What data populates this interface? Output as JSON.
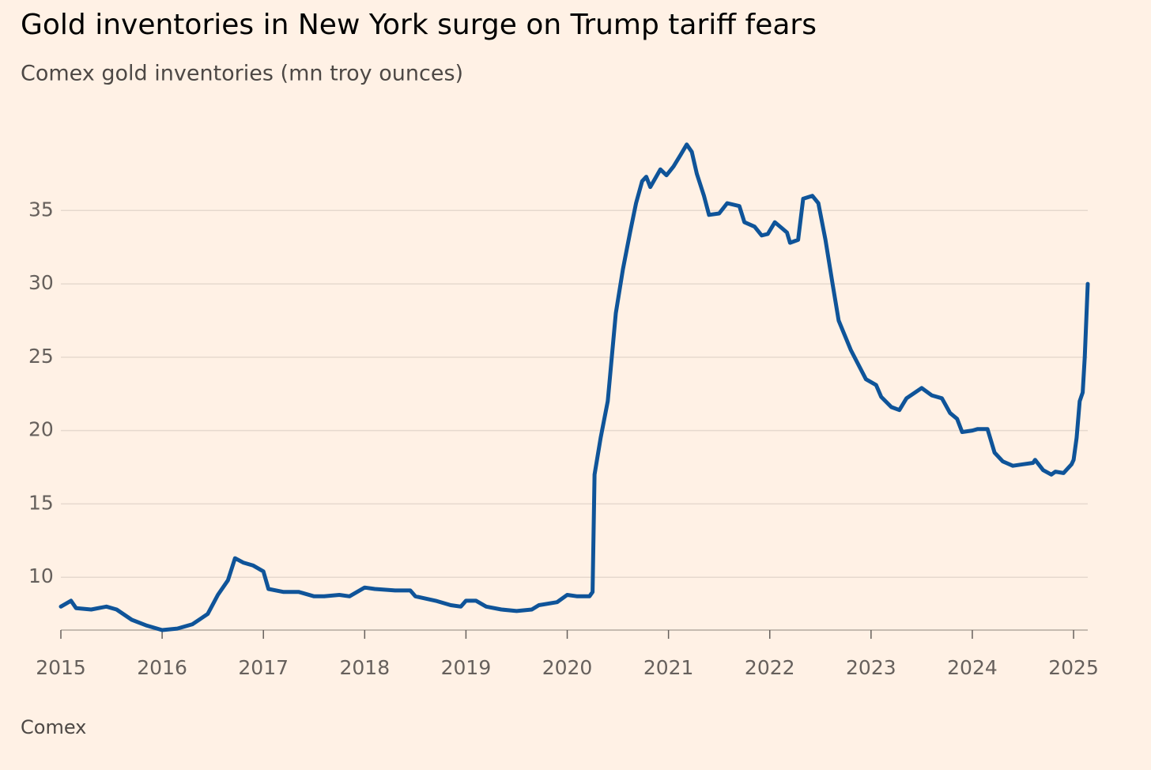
{
  "chart_data": {
    "type": "line",
    "title": "Gold inventories in New York surge on Trump tariff fears",
    "subtitle": "Comex gold inventories (mn troy ounces)",
    "source": "Comex",
    "x": [
      2015.0,
      2015.1,
      2015.15,
      2015.3,
      2015.45,
      2015.55,
      2015.7,
      2015.85,
      2016.0,
      2016.15,
      2016.3,
      2016.45,
      2016.55,
      2016.65,
      2016.72,
      2016.8,
      2016.9,
      2017.0,
      2017.05,
      2017.2,
      2017.35,
      2017.5,
      2017.6,
      2017.75,
      2017.85,
      2018.0,
      2018.1,
      2018.3,
      2018.45,
      2018.5,
      2018.7,
      2018.85,
      2018.95,
      2019.0,
      2019.1,
      2019.2,
      2019.35,
      2019.5,
      2019.65,
      2019.72,
      2019.9,
      2020.0,
      2020.1,
      2020.22,
      2020.25,
      2020.27,
      2020.33,
      2020.4,
      2020.44,
      2020.48,
      2020.55,
      2020.62,
      2020.68,
      2020.74,
      2020.78,
      2020.82,
      2020.92,
      2020.98,
      2021.05,
      2021.12,
      2021.18,
      2021.23,
      2021.28,
      2021.35,
      2021.4,
      2021.5,
      2021.58,
      2021.7,
      2021.75,
      2021.85,
      2021.92,
      2021.98,
      2022.05,
      2022.12,
      2022.17,
      2022.2,
      2022.28,
      2022.33,
      2022.42,
      2022.48,
      2022.55,
      2022.62,
      2022.68,
      2022.8,
      2022.95,
      2023.05,
      2023.1,
      2023.2,
      2023.28,
      2023.35,
      2023.5,
      2023.6,
      2023.7,
      2023.78,
      2023.85,
      2023.9,
      2024.0,
      2024.05,
      2024.15,
      2024.22,
      2024.3,
      2024.4,
      2024.5,
      2024.6,
      2024.62,
      2024.7,
      2024.78,
      2024.82,
      2024.9,
      2024.98,
      2025.0,
      2025.03,
      2025.06,
      2025.09,
      2025.11,
      2025.14
    ],
    "series": [
      {
        "name": "Comex gold inventories",
        "color": "#0f5499",
        "values": [
          8.0,
          8.4,
          7.9,
          7.8,
          8.0,
          7.8,
          7.1,
          6.7,
          6.4,
          6.5,
          6.8,
          7.5,
          8.8,
          9.8,
          11.3,
          11.0,
          10.8,
          10.4,
          9.2,
          9.0,
          9.0,
          8.7,
          8.7,
          8.8,
          8.7,
          9.3,
          9.2,
          9.1,
          9.1,
          8.7,
          8.4,
          8.1,
          8.0,
          8.4,
          8.4,
          8.0,
          7.8,
          7.7,
          7.8,
          8.1,
          8.3,
          8.8,
          8.7,
          8.7,
          9.0,
          17.0,
          19.5,
          22.0,
          25.0,
          28.0,
          31.0,
          33.5,
          35.5,
          37.0,
          37.3,
          36.6,
          37.8,
          37.4,
          38.0,
          38.8,
          39.5,
          39.0,
          37.5,
          36.0,
          34.7,
          34.8,
          35.5,
          35.3,
          34.2,
          33.9,
          33.3,
          33.4,
          34.2,
          33.8,
          33.5,
          32.8,
          33.0,
          35.8,
          36.0,
          35.5,
          33.0,
          30.0,
          27.5,
          25.5,
          23.5,
          23.1,
          22.3,
          21.6,
          21.4,
          22.2,
          22.9,
          22.4,
          22.2,
          21.2,
          20.8,
          19.9,
          20.0,
          20.1,
          20.1,
          18.5,
          17.9,
          17.6,
          17.7,
          17.8,
          18.0,
          17.3,
          17.0,
          17.2,
          17.1,
          17.7,
          18.0,
          19.5,
          22.0,
          22.6,
          25.0,
          30.0
        ]
      }
    ],
    "xlim": [
      2015,
      2025.14
    ],
    "xticks": [
      2015,
      2016,
      2017,
      2018,
      2019,
      2020,
      2021,
      2022,
      2023,
      2024,
      2025
    ],
    "ylim": [
      6.4,
      40
    ],
    "yticks": [
      10,
      15,
      20,
      25,
      30,
      35
    ],
    "grid": true
  }
}
